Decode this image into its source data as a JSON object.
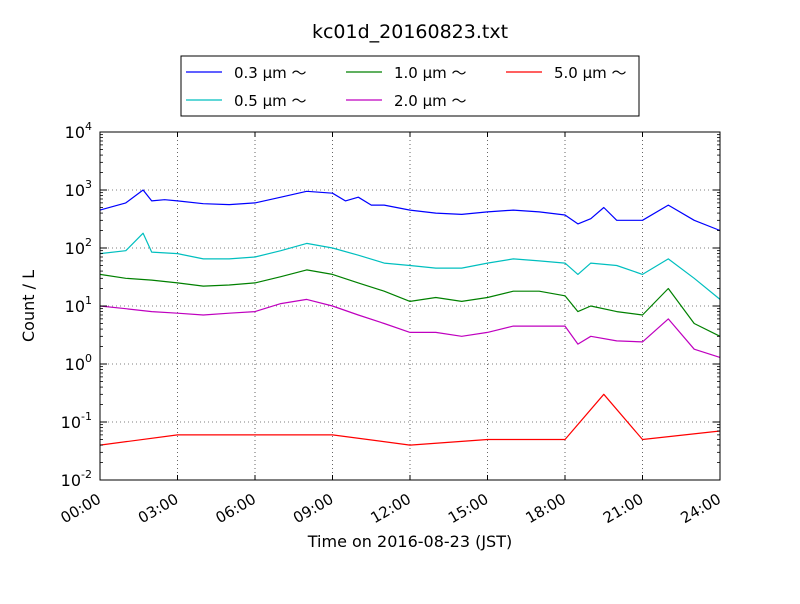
{
  "chart_data": {
    "type": "line",
    "title": "kc01d_20160823.txt",
    "xlabel": "Time on 2016-08-23 (JST)",
    "ylabel": "Count / L",
    "yscale": "log",
    "xlim": [
      "00:00",
      "24:00"
    ],
    "ylim": [
      0.01,
      10000
    ],
    "x_ticks": [
      "00:00",
      "03:00",
      "06:00",
      "09:00",
      "12:00",
      "15:00",
      "18:00",
      "21:00",
      "24:00"
    ],
    "y_ticks": [
      {
        "base": "10",
        "exp": "-2"
      },
      {
        "base": "10",
        "exp": "-1"
      },
      {
        "base": "10",
        "exp": "0"
      },
      {
        "base": "10",
        "exp": "1"
      },
      {
        "base": "10",
        "exp": "2"
      },
      {
        "base": "10",
        "exp": "3"
      },
      {
        "base": "10",
        "exp": "4"
      }
    ],
    "grid": true,
    "legend_position": "top",
    "series": [
      {
        "name": "0.3 μm ～",
        "color": "#0000ff",
        "x": [
          "00:00",
          "01:00",
          "01:40",
          "02:00",
          "02:30",
          "03:00",
          "04:00",
          "05:00",
          "06:00",
          "07:00",
          "08:00",
          "09:00",
          "09:30",
          "10:00",
          "10:30",
          "11:00",
          "12:00",
          "13:00",
          "14:00",
          "15:00",
          "16:00",
          "17:00",
          "18:00",
          "18:30",
          "19:00",
          "19:30",
          "20:00",
          "21:00",
          "22:00",
          "23:00",
          "24:00"
        ],
        "values": [
          450,
          600,
          1000,
          650,
          680,
          650,
          580,
          560,
          600,
          750,
          950,
          880,
          650,
          750,
          550,
          550,
          450,
          400,
          380,
          420,
          450,
          420,
          370,
          260,
          320,
          500,
          300,
          300,
          550,
          300,
          200
        ]
      },
      {
        "name": "0.5 μm ～",
        "color": "#00bfbf",
        "x": [
          "00:00",
          "01:00",
          "01:40",
          "02:00",
          "03:00",
          "04:00",
          "05:00",
          "06:00",
          "07:00",
          "08:00",
          "09:00",
          "10:00",
          "11:00",
          "12:00",
          "13:00",
          "14:00",
          "15:00",
          "16:00",
          "17:00",
          "18:00",
          "18:30",
          "19:00",
          "20:00",
          "21:00",
          "22:00",
          "23:00",
          "24:00"
        ],
        "values": [
          80,
          90,
          180,
          85,
          80,
          65,
          65,
          70,
          90,
          120,
          100,
          75,
          55,
          50,
          45,
          45,
          55,
          65,
          60,
          55,
          35,
          55,
          50,
          35,
          65,
          30,
          13
        ]
      },
      {
        "name": "1.0 μm ～",
        "color": "#008000",
        "x": [
          "00:00",
          "01:00",
          "02:00",
          "03:00",
          "04:00",
          "05:00",
          "06:00",
          "07:00",
          "08:00",
          "09:00",
          "10:00",
          "11:00",
          "12:00",
          "13:00",
          "14:00",
          "15:00",
          "16:00",
          "17:00",
          "18:00",
          "18:30",
          "19:00",
          "20:00",
          "21:00",
          "22:00",
          "23:00",
          "24:00"
        ],
        "values": [
          35,
          30,
          28,
          25,
          22,
          23,
          25,
          32,
          42,
          35,
          25,
          18,
          12,
          14,
          12,
          14,
          18,
          18,
          15,
          8,
          10,
          8,
          7,
          20,
          5,
          3
        ]
      },
      {
        "name": "2.0 μm ～",
        "color": "#bf00bf",
        "x": [
          "00:00",
          "01:00",
          "02:00",
          "03:00",
          "04:00",
          "05:00",
          "06:00",
          "07:00",
          "08:00",
          "09:00",
          "10:00",
          "11:00",
          "12:00",
          "13:00",
          "14:00",
          "15:00",
          "16:00",
          "17:00",
          "18:00",
          "18:30",
          "19:00",
          "20:00",
          "21:00",
          "22:00",
          "23:00",
          "24:00"
        ],
        "values": [
          10,
          9,
          8,
          7.5,
          7,
          7.5,
          8,
          11,
          13,
          10,
          7,
          5,
          3.5,
          3.5,
          3,
          3.5,
          4.5,
          4.5,
          4.5,
          2.2,
          3,
          2.5,
          2.4,
          6,
          1.8,
          1.3
        ]
      },
      {
        "name": "5.0 μm ～",
        "color": "#ff0000",
        "x": [
          "00:00",
          "03:00",
          "06:00",
          "09:00",
          "12:00",
          "15:00",
          "18:00",
          "19:30",
          "21:00",
          "24:00"
        ],
        "values": [
          0.04,
          0.06,
          0.06,
          0.06,
          0.04,
          0.05,
          0.05,
          0.3,
          0.05,
          0.07
        ]
      }
    ]
  }
}
